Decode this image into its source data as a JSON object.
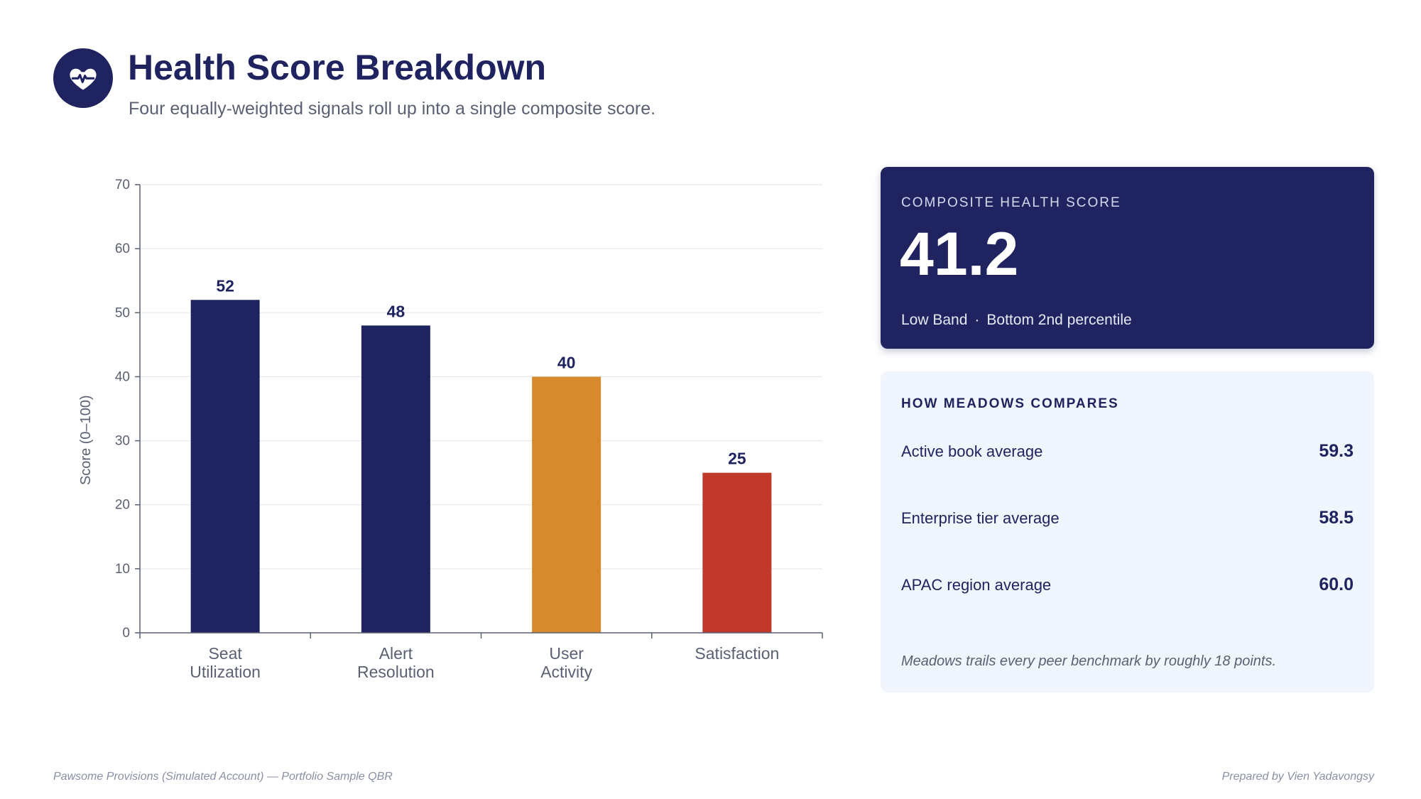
{
  "header": {
    "icon": "heart-pulse-icon",
    "title": "Health Score Breakdown",
    "subtitle": "Four equally-weighted signals roll up into a single composite score."
  },
  "colors": {
    "navy": "#1f2460",
    "amber": "#d68a2c",
    "red": "#c0392b",
    "panel_bg": "#f1f5fd"
  },
  "chart_data": {
    "type": "bar",
    "categories": [
      [
        "Seat",
        "Utilization"
      ],
      [
        "Alert",
        "Resolution"
      ],
      [
        "User",
        "Activity"
      ],
      [
        "Satisfaction"
      ]
    ],
    "values": [
      52,
      48,
      40,
      25
    ],
    "bar_colors": [
      "#1f2460",
      "#1f2460",
      "#d68a2c",
      "#c0392b"
    ],
    "ylabel": "Score (0–100)",
    "ylim": [
      0,
      70
    ],
    "yticks": [
      0,
      10,
      20,
      30,
      40,
      50,
      60,
      70
    ],
    "grid": true
  },
  "score_card": {
    "kicker": "COMPOSITE HEALTH SCORE",
    "value": "41.2",
    "band": "Low Band",
    "separator": "·",
    "percentile": "Bottom 2nd percentile"
  },
  "compare_card": {
    "heading": "HOW MEADOWS COMPARES",
    "rows": [
      {
        "label": "Active book average",
        "value": "59.3"
      },
      {
        "label": "Enterprise tier average",
        "value": "58.5"
      },
      {
        "label": "APAC region average",
        "value": "60.0"
      }
    ],
    "note": "Meadows trails every peer benchmark by roughly 18 points."
  },
  "footer": {
    "left": "Pawsome Provisions (Simulated Account) — Portfolio Sample QBR",
    "right": "Prepared by Vien Yadavongsy"
  }
}
